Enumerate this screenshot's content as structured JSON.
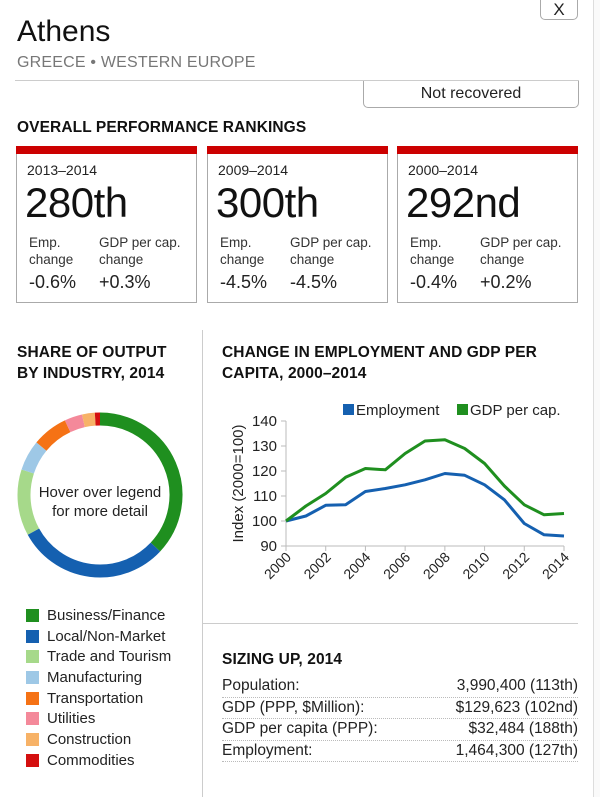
{
  "header": {
    "close_label": "X",
    "city": "Athens",
    "region": "GREECE • WESTERN EUROPE",
    "status": "Not recovered"
  },
  "rankings": {
    "title": "OVERALL PERFORMANCE RANKINGS",
    "accent_color": "#cc0000",
    "emp_label_1": "Emp.",
    "emp_label_2": "change",
    "gdp_label_1": "GDP per cap.",
    "gdp_label_2": "change",
    "cards": [
      {
        "period": "2013–2014",
        "rank": "280th",
        "emp_change": "-0.6%",
        "gdp_change": "+0.3%"
      },
      {
        "period": "2009–2014",
        "rank": "300th",
        "emp_change": "-4.5%",
        "gdp_change": "-4.5%"
      },
      {
        "period": "2000–2014",
        "rank": "292nd",
        "emp_change": "-0.4%",
        "gdp_change": "+0.2%"
      }
    ]
  },
  "industry": {
    "title_1": "SHARE OF OUTPUT",
    "title_2": "BY INDUSTRY, 2014",
    "center_1": "Hover over legend",
    "center_2": "for more detail"
  },
  "trend": {
    "title_1": "CHANGE IN EMPLOYMENT AND GDP PER",
    "title_2": "CAPITA, 2000–2014"
  },
  "sizing": {
    "title": "SIZING UP, 2014",
    "rows": [
      {
        "label": "Population:",
        "value": "3,990,400 (113th)"
      },
      {
        "label": "GDP (PPP, $Million):",
        "value": "$129,623 (102nd)"
      },
      {
        "label": "GDP per capita (PPP):",
        "value": "$32,484 (188th)"
      },
      {
        "label": "Employment:",
        "value": "1,464,300 (127th)"
      }
    ]
  },
  "chart_data": [
    {
      "type": "pie",
      "title": "SHARE OF OUTPUT BY INDUSTRY, 2014",
      "donut": true,
      "categories": [
        "Business/Finance",
        "Local/Non-Market",
        "Trade and Tourism",
        "Manufacturing",
        "Transportation",
        "Utilities",
        "Construction",
        "Commodities"
      ],
      "values": [
        37,
        30,
        13,
        6,
        7,
        3.5,
        2.5,
        1
      ],
      "colors": [
        "#1f8f1f",
        "#1560b0",
        "#a6d98a",
        "#9ec8e6",
        "#f57215",
        "#f4899a",
        "#f7b267",
        "#d40f0f"
      ],
      "legend": "bottom"
    },
    {
      "type": "line",
      "title": "CHANGE IN EMPLOYMENT AND GDP PER CAPITA, 2000–2014",
      "xlabel": "",
      "ylabel": "Index (2000=100)",
      "x": [
        2000,
        2001,
        2002,
        2003,
        2004,
        2005,
        2006,
        2007,
        2008,
        2009,
        2010,
        2011,
        2012,
        2013,
        2014
      ],
      "xticks": [
        "2000",
        "2002",
        "2004",
        "2006",
        "2008",
        "2010",
        "2012",
        "2014"
      ],
      "yticks": [
        "140",
        "130",
        "120",
        "110",
        "100",
        "90"
      ],
      "ylim": [
        90,
        140
      ],
      "grid": false,
      "legend": "top-right",
      "series": [
        {
          "name": "Employment",
          "color": "#1560b0",
          "values": [
            100,
            102,
            106.3,
            106.5,
            111.8,
            113,
            114.5,
            116.5,
            119,
            118.3,
            114.5,
            108.5,
            99,
            94.5,
            94
          ]
        },
        {
          "name": "GDP per cap.",
          "color": "#1f8f1f",
          "values": [
            100,
            106,
            111,
            117.5,
            121,
            120.5,
            127,
            132,
            132.5,
            129,
            123,
            114,
            106.5,
            102.5,
            103
          ]
        }
      ]
    }
  ]
}
